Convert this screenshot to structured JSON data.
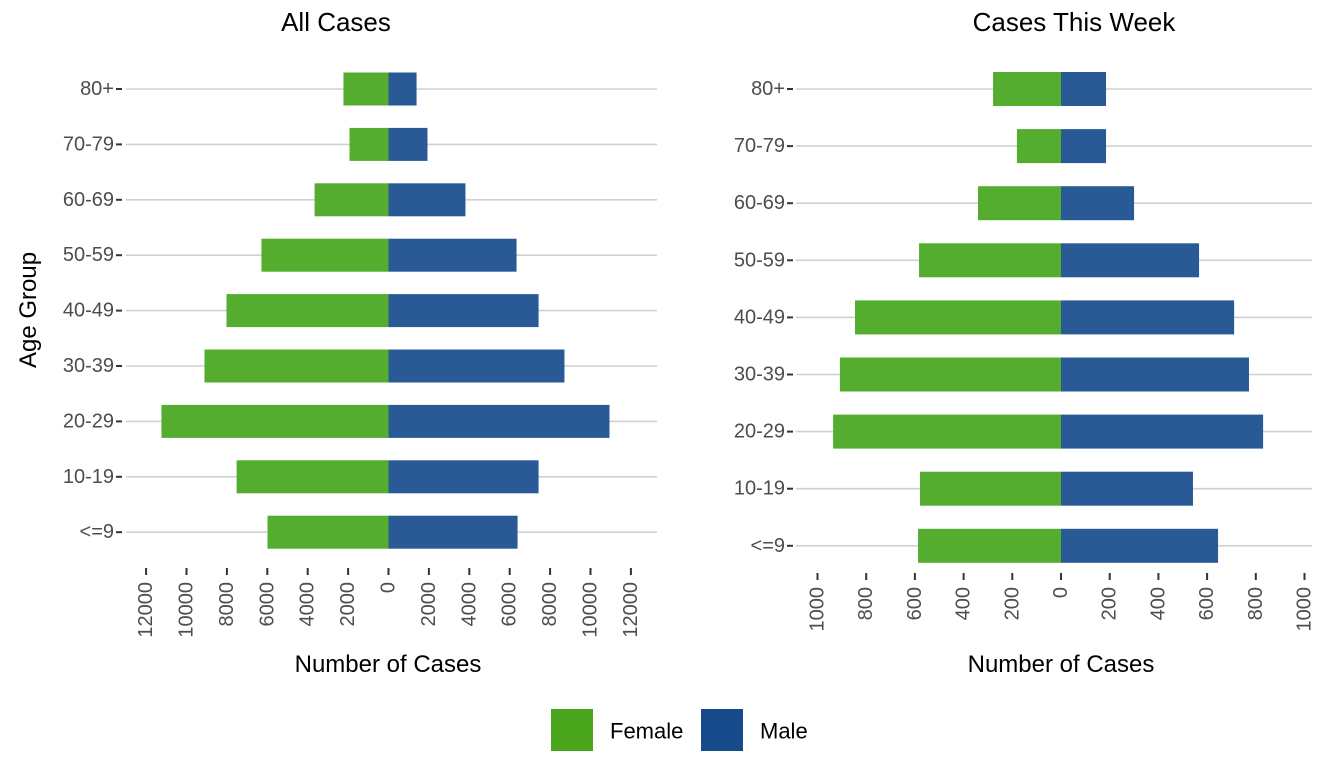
{
  "chart_data": [
    {
      "type": "bar",
      "orientation": "horizontal-diverging",
      "title": "All Cases",
      "xlabel": "Number of Cases",
      "ylabel": "Age Group",
      "categories": [
        "80+",
        "70-79",
        "60-69",
        "50-59",
        "40-49",
        "30-39",
        "20-29",
        "10-19",
        "<=9"
      ],
      "series": [
        {
          "name": "Female",
          "values": [
            2230,
            1930,
            3660,
            6290,
            8020,
            9110,
            11240,
            7520,
            5990
          ]
        },
        {
          "name": "Male",
          "values": [
            1390,
            1930,
            3810,
            6340,
            7430,
            8710,
            10940,
            7430,
            6390
          ]
        }
      ],
      "xlim": [
        -13000,
        13000
      ],
      "xticks": [
        -12000,
        -10000,
        -8000,
        -6000,
        -4000,
        -2000,
        0,
        2000,
        4000,
        6000,
        8000,
        10000,
        12000
      ],
      "xtick_labels": [
        "12000",
        "10000",
        "8000",
        "6000",
        "4000",
        "2000",
        "0",
        "2000",
        "4000",
        "6000",
        "8000",
        "10000",
        "12000"
      ],
      "grid": "horizontal"
    },
    {
      "type": "bar",
      "orientation": "horizontal-diverging",
      "title": "Cases This Week",
      "xlabel": "Number of Cases",
      "ylabel": "",
      "categories": [
        "80+",
        "70-79",
        "60-69",
        "50-59",
        "40-49",
        "30-39",
        "20-29",
        "10-19",
        "<=9"
      ],
      "series": [
        {
          "name": "Female",
          "values": [
            279,
            181,
            341,
            583,
            846,
            908,
            936,
            579,
            587
          ]
        },
        {
          "name": "Male",
          "values": [
            185,
            185,
            300,
            567,
            711,
            772,
            830,
            542,
            645
          ]
        }
      ],
      "xlim": [
        -1000,
        1000
      ],
      "xticks": [
        -1000,
        -800,
        -600,
        -400,
        -200,
        0,
        200,
        400,
        600,
        800,
        1000
      ],
      "xtick_labels": [
        "1000",
        "800",
        "600",
        "400",
        "200",
        "0",
        "200",
        "400",
        "600",
        "800",
        "1000"
      ],
      "grid": "horizontal"
    }
  ],
  "legend": {
    "position": "bottom",
    "items": [
      {
        "label": "Female",
        "color": "#4aa71d"
      },
      {
        "label": "Male",
        "color": "#174a8b"
      }
    ]
  },
  "colors": {
    "female_bar": "#55ad30",
    "male_bar": "#2a5a96"
  }
}
